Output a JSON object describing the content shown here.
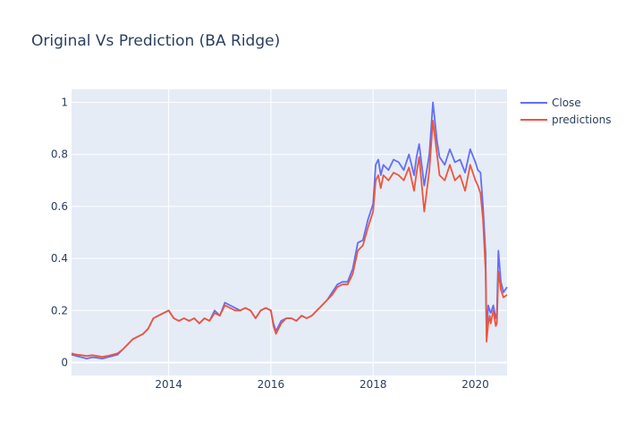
{
  "chart_data": {
    "type": "line",
    "title": "Original Vs Prediction (BA Ridge)",
    "xlabel": "",
    "ylabel": "",
    "xlim": [
      2012.1,
      2020.62
    ],
    "ylim": [
      -0.05,
      1.05
    ],
    "xticks": [
      2014,
      2016,
      2018,
      2020
    ],
    "xtick_labels": [
      "2014",
      "2016",
      "2018",
      "2020"
    ],
    "yticks": [
      0,
      0.2,
      0.4,
      0.6,
      0.8,
      1
    ],
    "ytick_labels": [
      "0",
      "0.2",
      "0.4",
      "0.6",
      "0.8",
      "1"
    ],
    "grid": true,
    "legend_position": "top-right",
    "series": [
      {
        "name": "Close",
        "color": "#636efa",
        "x": [
          2012.1,
          2012.2,
          2012.3,
          2012.4,
          2012.5,
          2012.6,
          2012.7,
          2012.8,
          2012.9,
          2013.0,
          2013.1,
          2013.2,
          2013.3,
          2013.4,
          2013.5,
          2013.6,
          2013.7,
          2013.8,
          2013.9,
          2014.0,
          2014.1,
          2014.2,
          2014.3,
          2014.4,
          2014.5,
          2014.6,
          2014.7,
          2014.8,
          2014.9,
          2015.0,
          2015.1,
          2015.2,
          2015.3,
          2015.4,
          2015.5,
          2015.6,
          2015.7,
          2015.8,
          2015.9,
          2016.0,
          2016.05,
          2016.1,
          2016.2,
          2016.3,
          2016.4,
          2016.5,
          2016.6,
          2016.7,
          2016.8,
          2016.9,
          2017.0,
          2017.1,
          2017.2,
          2017.3,
          2017.4,
          2017.5,
          2017.6,
          2017.7,
          2017.8,
          2017.9,
          2018.0,
          2018.05,
          2018.1,
          2018.15,
          2018.2,
          2018.3,
          2018.4,
          2018.5,
          2018.6,
          2018.7,
          2018.8,
          2018.85,
          2018.9,
          2019.0,
          2019.1,
          2019.17,
          2019.25,
          2019.3,
          2019.4,
          2019.5,
          2019.6,
          2019.7,
          2019.8,
          2019.9,
          2020.0,
          2020.05,
          2020.1,
          2020.15,
          2020.2,
          2020.22,
          2020.25,
          2020.28,
          2020.3,
          2020.35,
          2020.4,
          2020.42,
          2020.45,
          2020.5,
          2020.55,
          2020.62
        ],
        "y": [
          0.03,
          0.025,
          0.02,
          0.015,
          0.02,
          0.018,
          0.015,
          0.02,
          0.025,
          0.03,
          0.05,
          0.07,
          0.09,
          0.1,
          0.11,
          0.13,
          0.17,
          0.18,
          0.19,
          0.2,
          0.17,
          0.16,
          0.17,
          0.16,
          0.17,
          0.15,
          0.17,
          0.16,
          0.2,
          0.18,
          0.23,
          0.22,
          0.21,
          0.2,
          0.21,
          0.2,
          0.17,
          0.2,
          0.21,
          0.2,
          0.15,
          0.12,
          0.16,
          0.17,
          0.17,
          0.16,
          0.18,
          0.17,
          0.18,
          0.2,
          0.22,
          0.24,
          0.27,
          0.3,
          0.31,
          0.31,
          0.36,
          0.46,
          0.47,
          0.55,
          0.61,
          0.76,
          0.78,
          0.72,
          0.76,
          0.74,
          0.78,
          0.77,
          0.74,
          0.8,
          0.72,
          0.79,
          0.84,
          0.68,
          0.8,
          1.0,
          0.85,
          0.79,
          0.76,
          0.82,
          0.77,
          0.78,
          0.73,
          0.82,
          0.77,
          0.74,
          0.73,
          0.6,
          0.42,
          0.1,
          0.22,
          0.2,
          0.19,
          0.22,
          0.17,
          0.19,
          0.43,
          0.31,
          0.27,
          0.29
        ]
      },
      {
        "name": "predictions",
        "color": "#ef553b",
        "x": [
          2012.1,
          2012.2,
          2012.3,
          2012.4,
          2012.5,
          2012.6,
          2012.7,
          2012.8,
          2012.9,
          2013.0,
          2013.1,
          2013.2,
          2013.3,
          2013.4,
          2013.5,
          2013.6,
          2013.7,
          2013.8,
          2013.9,
          2014.0,
          2014.1,
          2014.2,
          2014.3,
          2014.4,
          2014.5,
          2014.6,
          2014.7,
          2014.8,
          2014.9,
          2015.0,
          2015.1,
          2015.2,
          2015.3,
          2015.4,
          2015.5,
          2015.6,
          2015.7,
          2015.8,
          2015.9,
          2016.0,
          2016.05,
          2016.1,
          2016.2,
          2016.3,
          2016.4,
          2016.5,
          2016.6,
          2016.7,
          2016.8,
          2016.9,
          2017.0,
          2017.1,
          2017.2,
          2017.3,
          2017.4,
          2017.5,
          2017.6,
          2017.7,
          2017.8,
          2017.9,
          2018.0,
          2018.05,
          2018.1,
          2018.15,
          2018.2,
          2018.3,
          2018.4,
          2018.5,
          2018.6,
          2018.7,
          2018.8,
          2018.85,
          2018.9,
          2019.0,
          2019.1,
          2019.17,
          2019.25,
          2019.3,
          2019.4,
          2019.5,
          2019.6,
          2019.7,
          2019.8,
          2019.9,
          2020.0,
          2020.05,
          2020.1,
          2020.15,
          2020.2,
          2020.22,
          2020.25,
          2020.28,
          2020.3,
          2020.35,
          2020.4,
          2020.42,
          2020.45,
          2020.5,
          2020.55,
          2020.62
        ],
        "y": [
          0.035,
          0.03,
          0.028,
          0.025,
          0.028,
          0.025,
          0.022,
          0.025,
          0.03,
          0.035,
          0.05,
          0.07,
          0.09,
          0.1,
          0.11,
          0.13,
          0.17,
          0.18,
          0.19,
          0.2,
          0.17,
          0.16,
          0.17,
          0.16,
          0.17,
          0.15,
          0.17,
          0.16,
          0.19,
          0.18,
          0.22,
          0.21,
          0.2,
          0.2,
          0.21,
          0.2,
          0.17,
          0.2,
          0.21,
          0.2,
          0.14,
          0.11,
          0.15,
          0.17,
          0.17,
          0.16,
          0.18,
          0.17,
          0.18,
          0.2,
          0.22,
          0.24,
          0.26,
          0.29,
          0.3,
          0.3,
          0.34,
          0.43,
          0.45,
          0.52,
          0.58,
          0.7,
          0.72,
          0.67,
          0.72,
          0.7,
          0.73,
          0.72,
          0.7,
          0.75,
          0.66,
          0.73,
          0.79,
          0.58,
          0.74,
          0.93,
          0.8,
          0.72,
          0.7,
          0.76,
          0.7,
          0.72,
          0.66,
          0.76,
          0.7,
          0.68,
          0.65,
          0.55,
          0.35,
          0.08,
          0.15,
          0.18,
          0.15,
          0.2,
          0.14,
          0.15,
          0.35,
          0.28,
          0.25,
          0.26
        ]
      }
    ]
  }
}
